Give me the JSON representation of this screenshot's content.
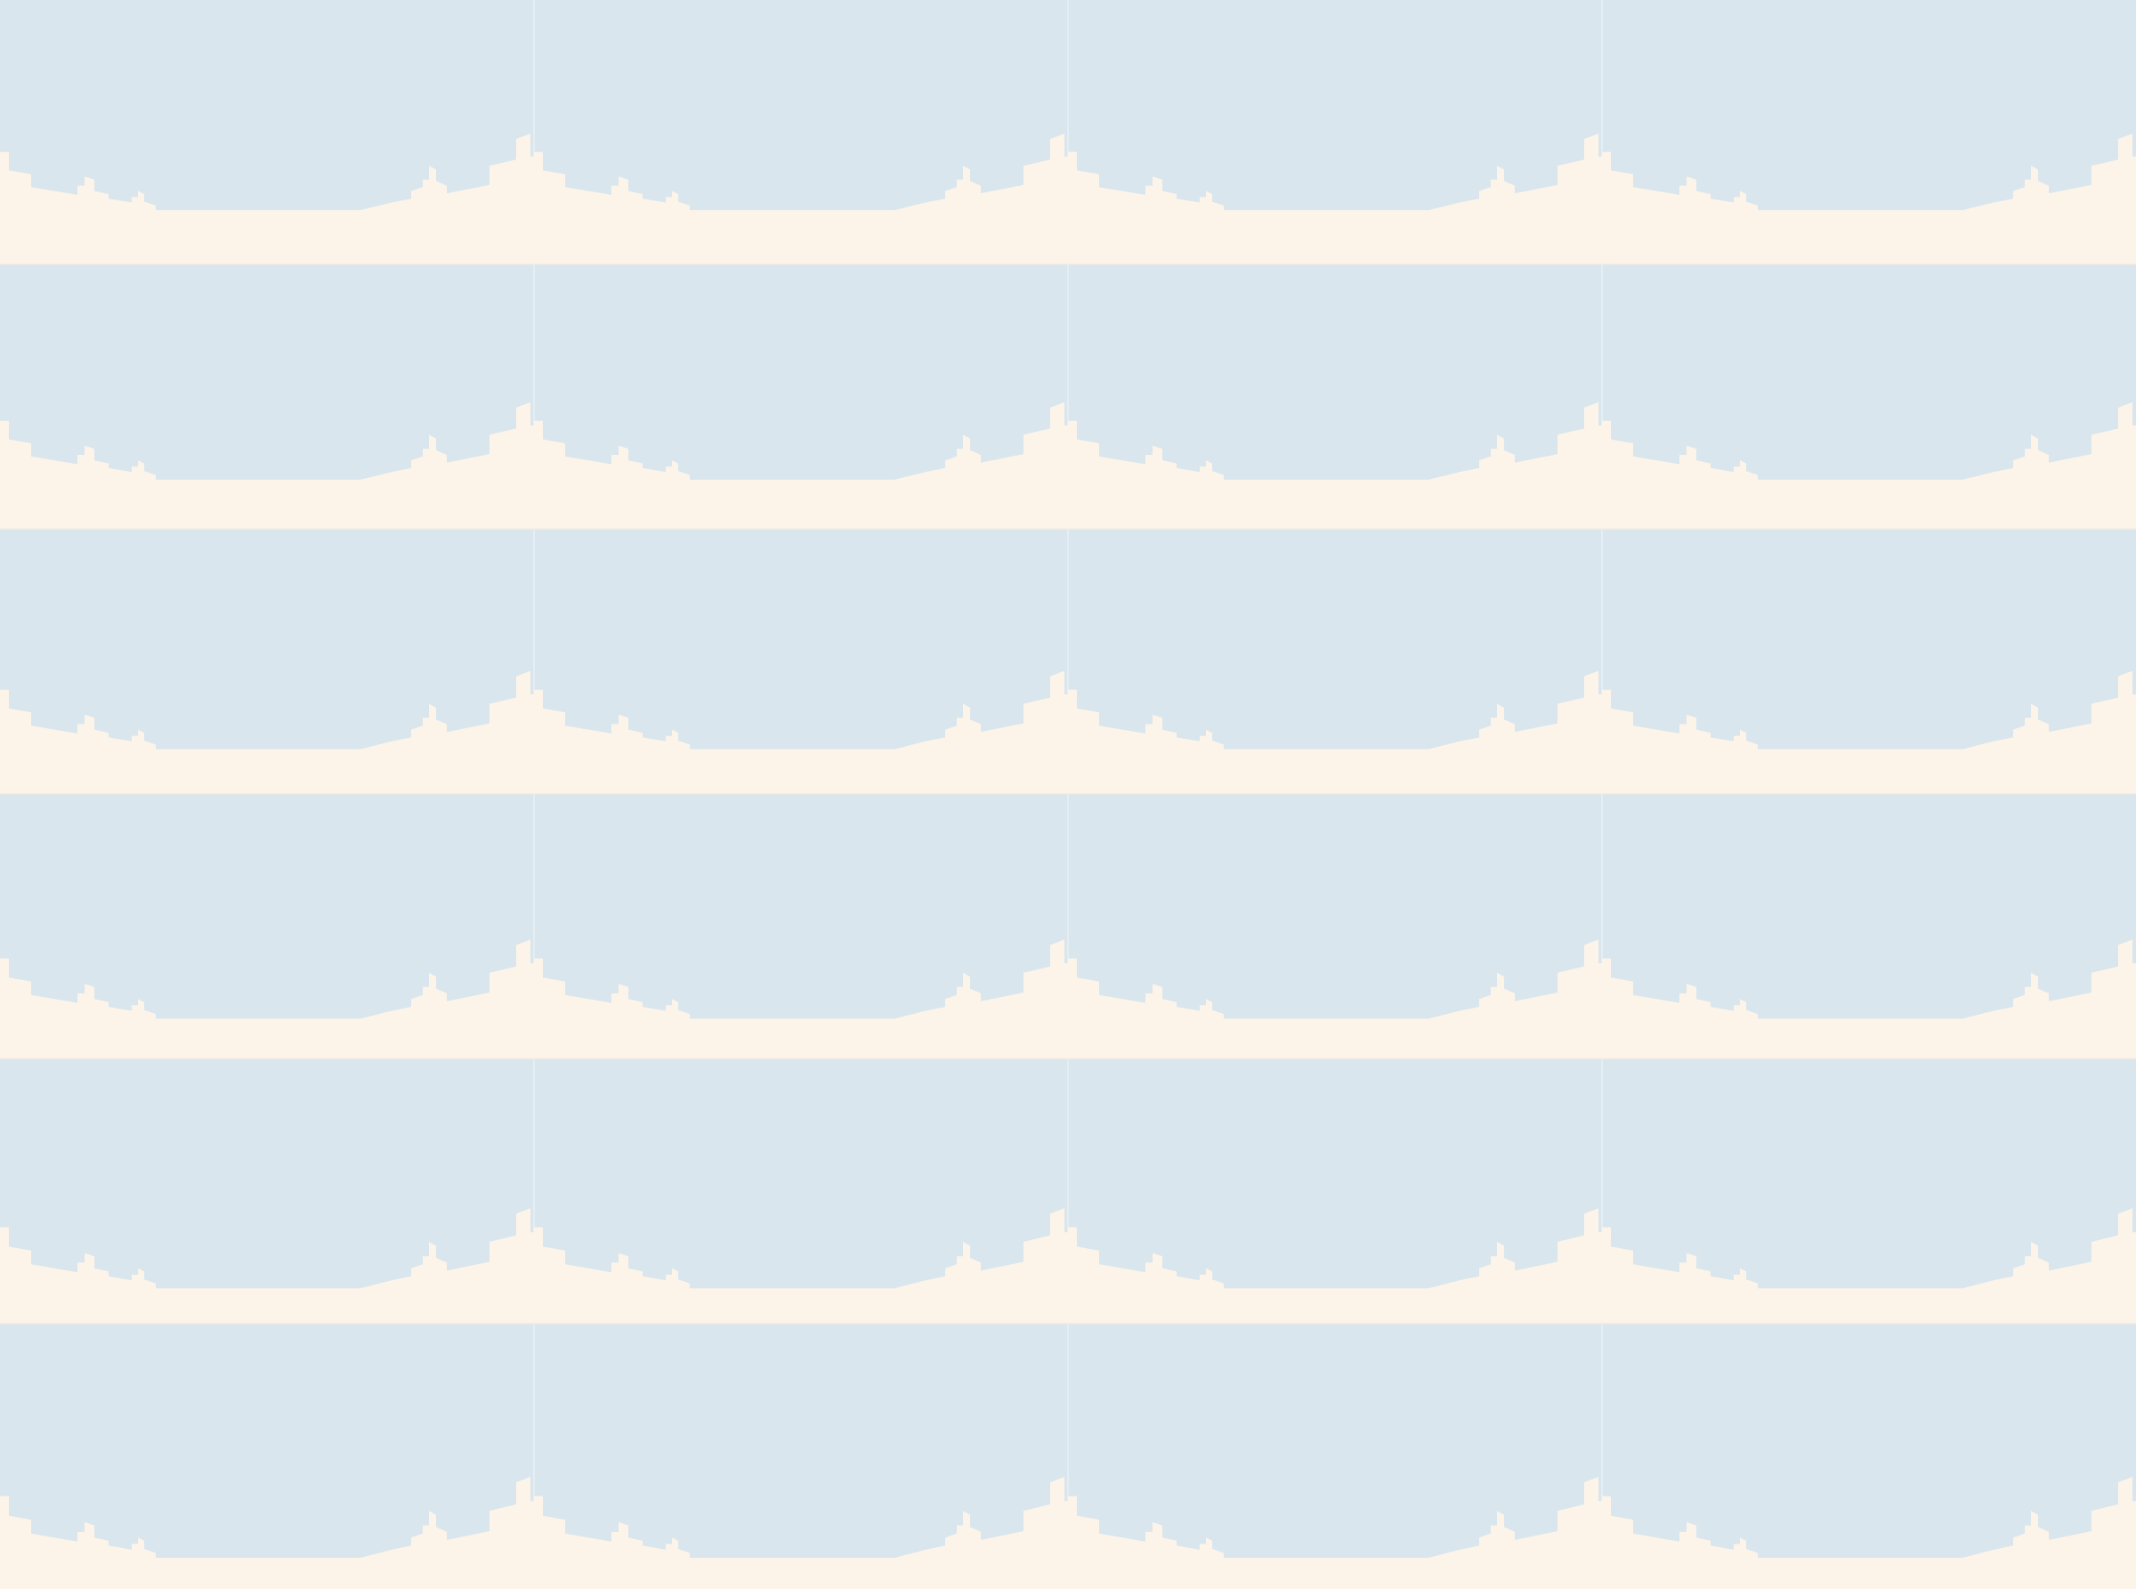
{
  "scene": {
    "pattern": "skyline-strip",
    "rows": 6,
    "tiles_per_row": 4,
    "colors": {
      "sky": "#dae6ed",
      "ground": "#fdf4e9",
      "seam": "#e4edf2",
      "band_separator": "#f3ebe1"
    }
  }
}
